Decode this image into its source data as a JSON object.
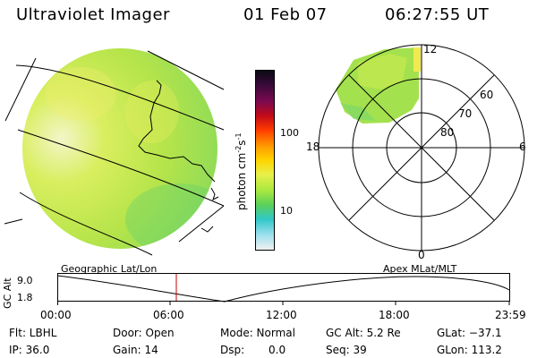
{
  "header": {
    "instrument": "Ultraviolet Imager",
    "date": "01 Feb 07",
    "time": "06:27:55 UT"
  },
  "colorbar": {
    "unit_label": "photon cm",
    "unit_sup1": "-2",
    "unit_mid": "s",
    "unit_sup2": "-1",
    "ticks": [
      "100",
      "10"
    ],
    "colors": [
      "#0a0a14",
      "#3a0a3a",
      "#7a0a50",
      "#c00a1a",
      "#ff3a00",
      "#ff9900",
      "#ffd400",
      "#e8f04a",
      "#a8e840",
      "#5ad05a",
      "#30c8c8",
      "#a0e0f0",
      "#f0f0f0"
    ]
  },
  "polar": {
    "mlt_labels": {
      "top": "12",
      "left": "18",
      "right": "6",
      "bottom": "0"
    },
    "lat_labels": [
      "60",
      "70",
      "80"
    ]
  },
  "timeline": {
    "left_label": "Geographic Lat/Lon",
    "right_label": "Apex  MLat/MLT",
    "axis_label": "GC Alt",
    "y_ticks": [
      "9.0",
      "1.8"
    ],
    "x_ticks": [
      "00:00",
      "06:00",
      "12:00",
      "18:00",
      "23:59"
    ]
  },
  "info": {
    "row1": {
      "flt": "Flt: LBHL",
      "door": "Door: Open",
      "mode": "Mode: Normal",
      "gc_alt": "GC Alt: 5.2 Re",
      "glat": "GLat: −37.1"
    },
    "row2": {
      "ip": "IP: 36.0",
      "gain": "Gain: 14",
      "dsp_label": "Dsp:",
      "dsp_value": "0.0",
      "seq": "Seq: 39",
      "glon": "GLon: 113.2"
    }
  }
}
